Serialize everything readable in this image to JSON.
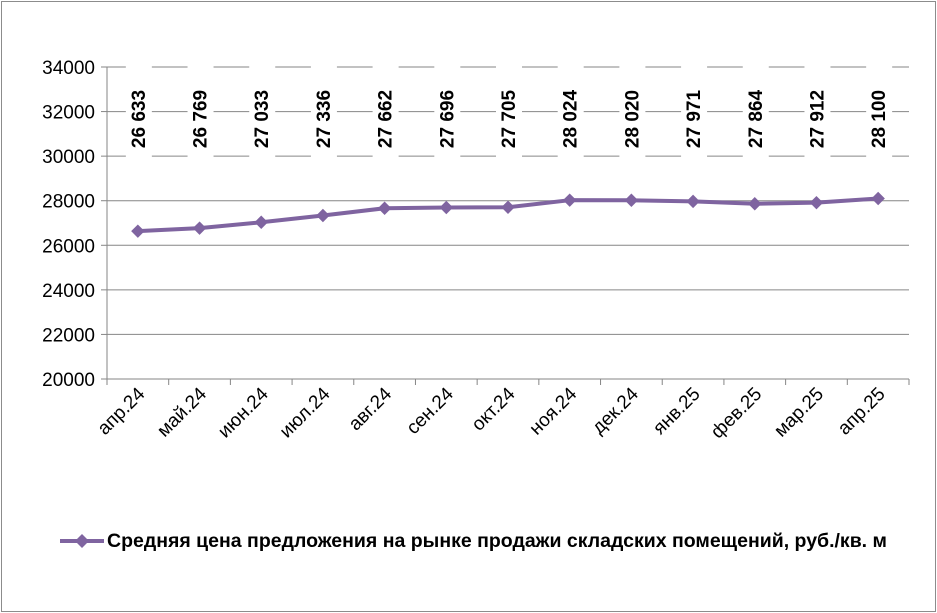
{
  "chart_data": {
    "type": "line",
    "categories": [
      "апр.24",
      "май.24",
      "июн.24",
      "июл.24",
      "авг.24",
      "сен.24",
      "окт.24",
      "ноя.24",
      "дек.24",
      "янв.25",
      "фев.25",
      "мар.25",
      "апр.25"
    ],
    "series": [
      {
        "name": "Средняя цена предложения на рынке продажи складских помещений, руб./кв. м",
        "values": [
          26633,
          26769,
          27033,
          27336,
          27662,
          27696,
          27705,
          28024,
          28020,
          27971,
          27864,
          27912,
          28100
        ],
        "data_labels": [
          "26 633",
          "26 769",
          "27 033",
          "27 336",
          "27 662",
          "27 696",
          "27 705",
          "28 024",
          "28 020",
          "27 971",
          "27 864",
          "27 912",
          "28 100"
        ],
        "color": "#7f64a0",
        "marker": "diamond"
      }
    ],
    "ylim": [
      20000,
      34000
    ],
    "yticks": [
      20000,
      22000,
      24000,
      26000,
      28000,
      30000,
      32000,
      34000
    ],
    "ytick_labels": [
      "20000",
      "22000",
      "24000",
      "26000",
      "28000",
      "30000",
      "32000",
      "34000"
    ],
    "grid": "horizontal",
    "legend_position": "bottom",
    "title": "",
    "xlabel": "",
    "ylabel": ""
  }
}
